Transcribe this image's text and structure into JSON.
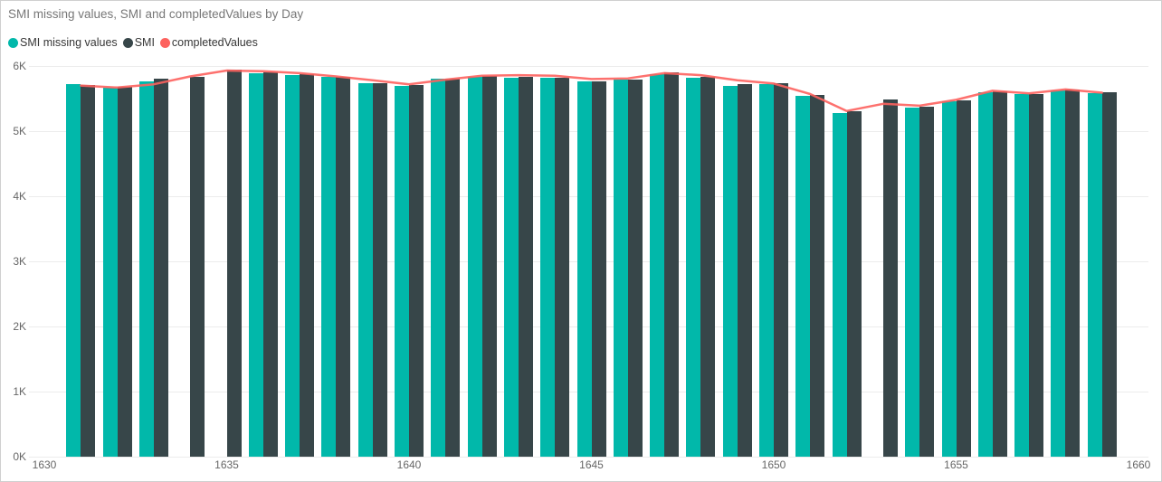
{
  "title": "SMI missing values, SMI and completedValues by Day",
  "colors": {
    "teal": "#01B8AA",
    "dark": "#374649",
    "red": "#FD625E",
    "title_text": "#777777",
    "legend_text": "#363636",
    "axis_text": "#666666",
    "gridline": "#ececec",
    "background": "#ffffff",
    "border": "#cfcfcf"
  },
  "legend": [
    {
      "label": "SMI missing values",
      "color": "#01B8AA",
      "series": "smi_missing"
    },
    {
      "label": "SMI",
      "color": "#374649",
      "series": "smi"
    },
    {
      "label": "completedValues",
      "color": "#FD625E",
      "series": "completed"
    }
  ],
  "chart_data": {
    "type": "combo-bar-line",
    "title": "SMI missing values, SMI and completedValues by Day",
    "xlabel": "",
    "ylabel": "",
    "xlim": [
      1630,
      1660
    ],
    "ylim": [
      0,
      6000
    ],
    "grid": true,
    "legend_position": "top-left",
    "x_ticks": [
      1630,
      1635,
      1640,
      1645,
      1650,
      1655,
      1660
    ],
    "y_ticks": [
      {
        "value": 0,
        "label": "0K"
      },
      {
        "value": 1000,
        "label": "1K"
      },
      {
        "value": 2000,
        "label": "2K"
      },
      {
        "value": 3000,
        "label": "3K"
      },
      {
        "value": 4000,
        "label": "4K"
      },
      {
        "value": 5000,
        "label": "5K"
      },
      {
        "value": 6000,
        "label": "6K"
      }
    ],
    "x": [
      1631,
      1632,
      1633,
      1634,
      1635,
      1636,
      1637,
      1638,
      1639,
      1640,
      1641,
      1642,
      1643,
      1644,
      1645,
      1646,
      1647,
      1648,
      1649,
      1650,
      1651,
      1652,
      1653,
      1654,
      1655,
      1656,
      1657,
      1658,
      1659
    ],
    "series": [
      {
        "name": "SMI missing values",
        "kind": "bar",
        "color": "#01B8AA",
        "values": [
          5720,
          5670,
          5770,
          null,
          null,
          5890,
          5860,
          5830,
          5730,
          5700,
          5800,
          5840,
          5820,
          5820,
          5760,
          5790,
          5870,
          5820,
          5700,
          5720,
          5540,
          5280,
          null,
          5360,
          5460,
          5600,
          5570,
          5630,
          5590
        ]
      },
      {
        "name": "SMI",
        "kind": "bar",
        "color": "#374649",
        "values": [
          5710,
          5680,
          5800,
          5830,
          5950,
          5900,
          5870,
          5840,
          5740,
          5710,
          5810,
          5850,
          5830,
          5820,
          5770,
          5790,
          5900,
          5830,
          5720,
          5730,
          5560,
          5300,
          5480,
          5370,
          5470,
          5610,
          5570,
          5640,
          5600
        ]
      },
      {
        "name": "completedValues",
        "kind": "line",
        "color": "#FD625E",
        "values": [
          5700,
          5670,
          5720,
          5840,
          5930,
          5920,
          5890,
          5840,
          5780,
          5720,
          5790,
          5850,
          5860,
          5850,
          5800,
          5810,
          5890,
          5860,
          5780,
          5730,
          5570,
          5310,
          5420,
          5390,
          5480,
          5620,
          5580,
          5640,
          5590
        ]
      }
    ]
  }
}
